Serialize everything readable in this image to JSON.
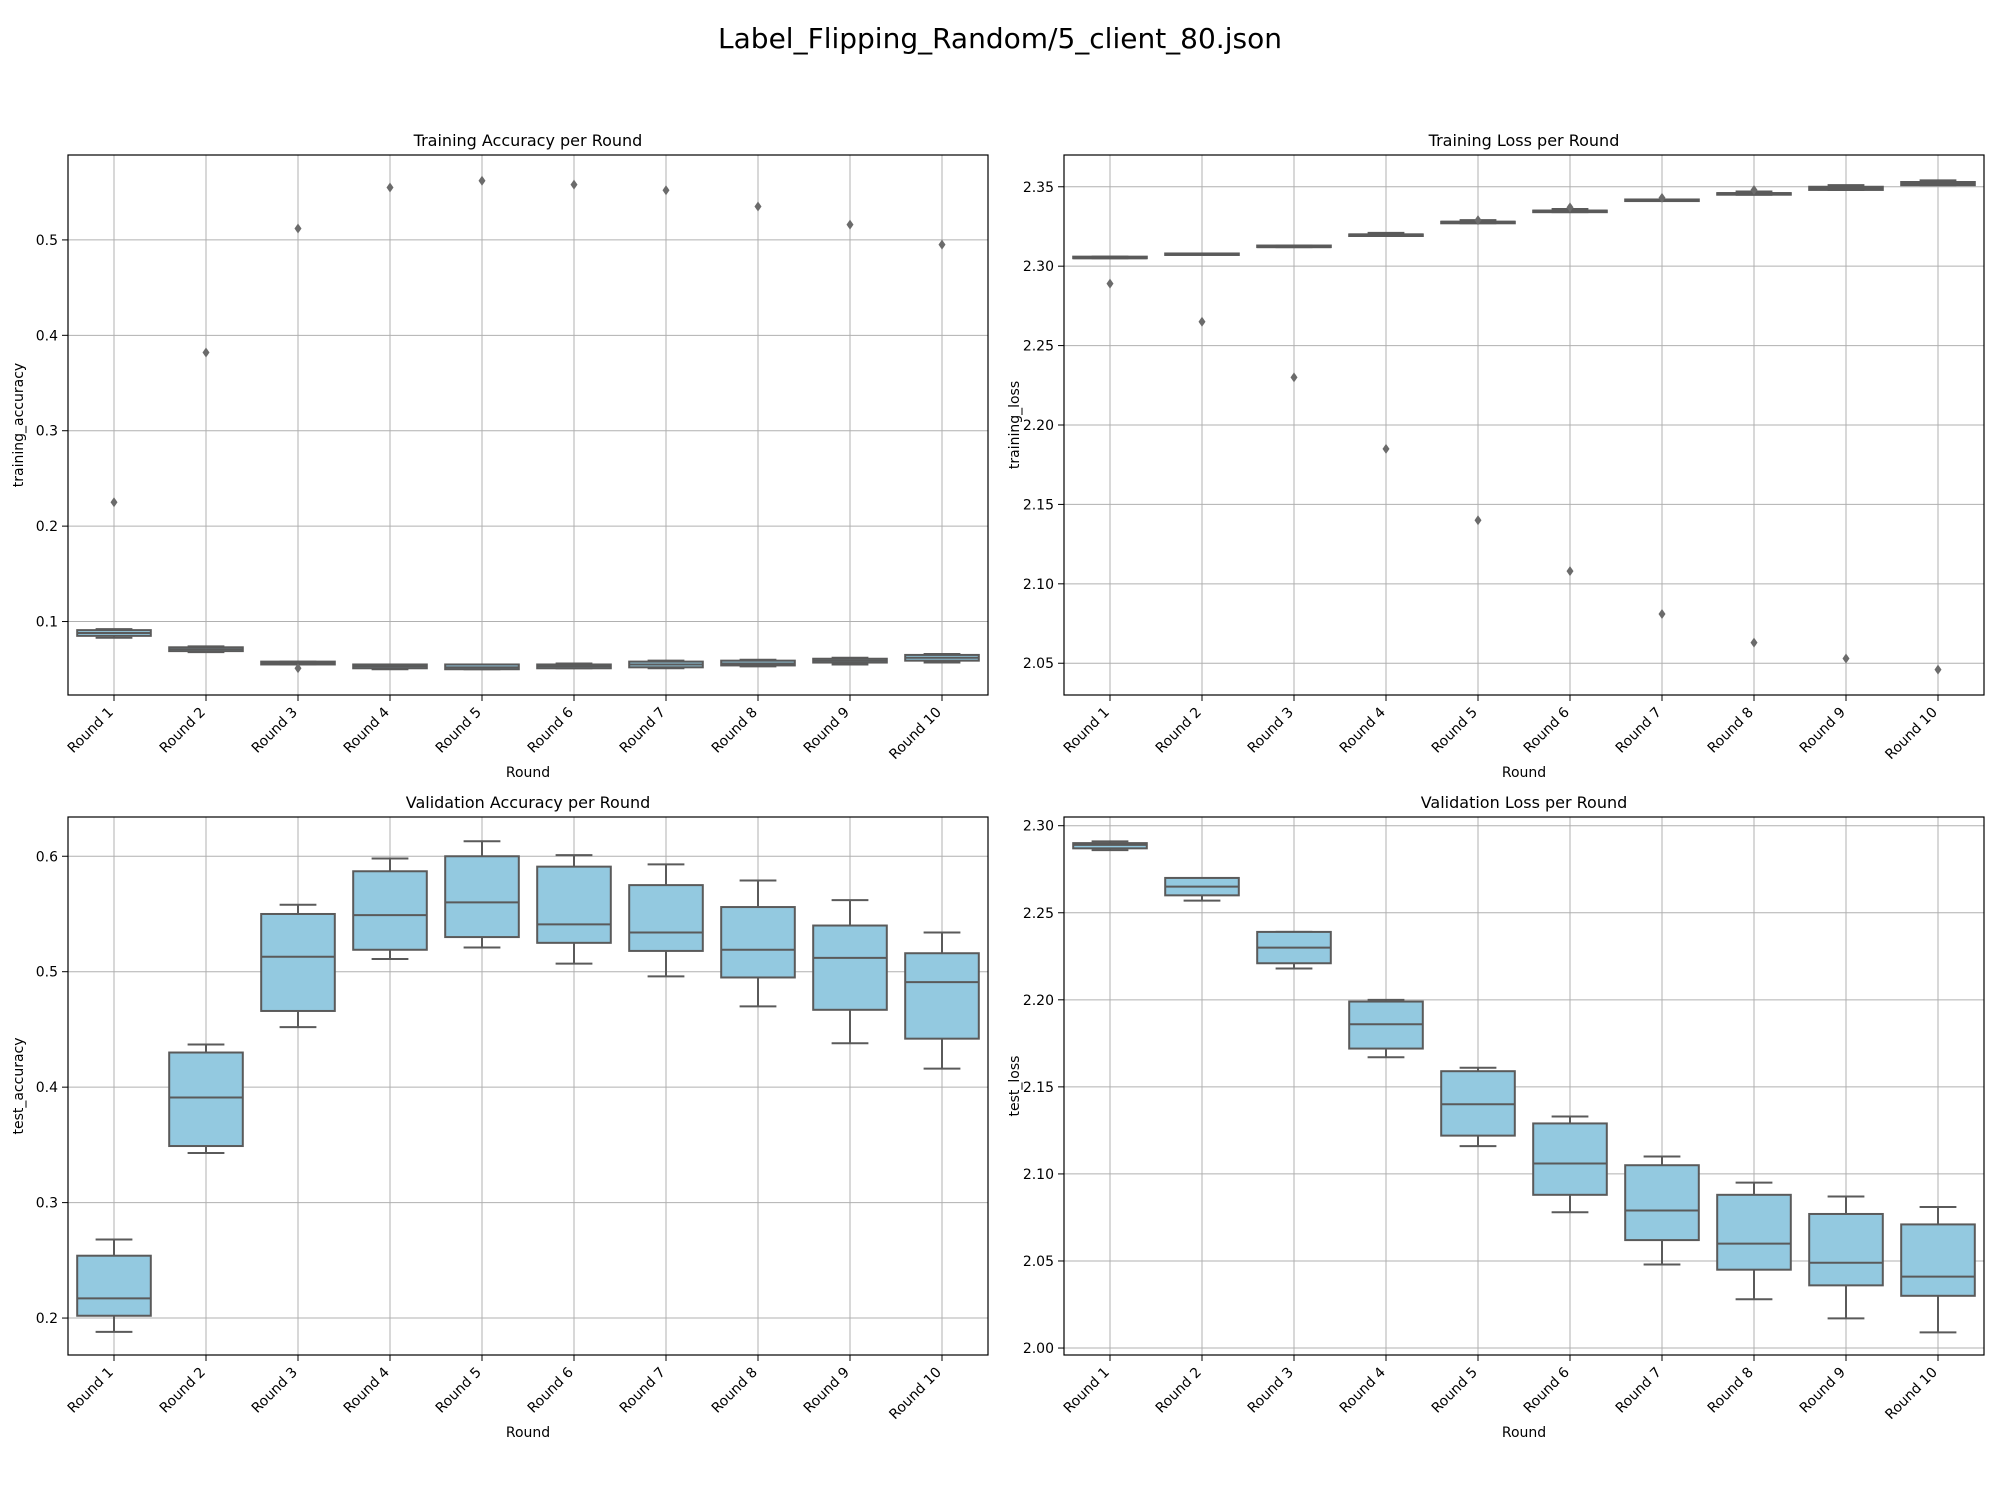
{
  "figure_title": "Label_Flipping_Random/5_client_80.json",
  "chart_data": [
    {
      "type": "box",
      "title": "Training Accuracy per Round",
      "xlabel": "Round",
      "ylabel": "training_accuracy",
      "categories": [
        "Round 1",
        "Round 2",
        "Round 3",
        "Round 4",
        "Round 5",
        "Round 6",
        "Round 7",
        "Round 8",
        "Round 9",
        "Round 10"
      ],
      "ylim": [
        0.023,
        0.589
      ],
      "yticks": [
        0.1,
        0.2,
        0.3,
        0.4,
        0.5
      ],
      "box_color": "#93c9e0",
      "grid": true,
      "boxes": [
        {
          "whislo": 0.083,
          "q1": 0.085,
          "med": 0.088,
          "q3": 0.091,
          "whishi": 0.092,
          "fliers": [
            0.225
          ]
        },
        {
          "whislo": 0.068,
          "q1": 0.069,
          "med": 0.071,
          "q3": 0.073,
          "whishi": 0.074,
          "fliers": [
            0.382
          ]
        },
        {
          "whislo": 0.055,
          "q1": 0.055,
          "med": 0.056,
          "q3": 0.058,
          "whishi": 0.058,
          "fliers": [
            0.512,
            0.051
          ]
        },
        {
          "whislo": 0.05,
          "q1": 0.051,
          "med": 0.053,
          "q3": 0.055,
          "whishi": 0.055,
          "fliers": [
            0.555
          ]
        },
        {
          "whislo": 0.05,
          "q1": 0.05,
          "med": 0.052,
          "q3": 0.055,
          "whishi": 0.055,
          "fliers": [
            0.562
          ]
        },
        {
          "whislo": 0.051,
          "q1": 0.051,
          "med": 0.053,
          "q3": 0.055,
          "whishi": 0.056,
          "fliers": [
            0.558
          ]
        },
        {
          "whislo": 0.051,
          "q1": 0.052,
          "med": 0.055,
          "q3": 0.058,
          "whishi": 0.059,
          "fliers": [
            0.552
          ]
        },
        {
          "whislo": 0.053,
          "q1": 0.054,
          "med": 0.056,
          "q3": 0.059,
          "whishi": 0.06,
          "fliers": [
            0.535
          ]
        },
        {
          "whislo": 0.055,
          "q1": 0.057,
          "med": 0.059,
          "q3": 0.061,
          "whishi": 0.062,
          "fliers": [
            0.516
          ]
        },
        {
          "whislo": 0.057,
          "q1": 0.059,
          "med": 0.062,
          "q3": 0.065,
          "whishi": 0.066,
          "fliers": [
            0.495
          ]
        }
      ]
    },
    {
      "type": "box",
      "title": "Training Loss per Round",
      "xlabel": "Round",
      "ylabel": "training_loss",
      "categories": [
        "Round 1",
        "Round 2",
        "Round 3",
        "Round 4",
        "Round 5",
        "Round 6",
        "Round 7",
        "Round 8",
        "Round 9",
        "Round 10"
      ],
      "ylim": [
        2.03,
        2.37
      ],
      "yticks": [
        2.05,
        2.1,
        2.15,
        2.2,
        2.25,
        2.3,
        2.35
      ],
      "box_color": "#93c9e0",
      "grid": true,
      "boxes": [
        {
          "whislo": 2.305,
          "q1": 2.305,
          "med": 2.305,
          "q3": 2.306,
          "whishi": 2.306,
          "fliers": [
            2.289
          ]
        },
        {
          "whislo": 2.308,
          "q1": 2.308,
          "med": 2.308,
          "q3": 2.308,
          "whishi": 2.308,
          "fliers": [
            2.265
          ]
        },
        {
          "whislo": 2.312,
          "q1": 2.312,
          "med": 2.312,
          "q3": 2.313,
          "whishi": 2.313,
          "fliers": [
            2.23
          ]
        },
        {
          "whislo": 2.319,
          "q1": 2.319,
          "med": 2.32,
          "q3": 2.32,
          "whishi": 2.321,
          "fliers": [
            2.185
          ]
        },
        {
          "whislo": 2.327,
          "q1": 2.327,
          "med": 2.328,
          "q3": 2.328,
          "whishi": 2.329,
          "fliers": [
            2.14,
            2.329
          ]
        },
        {
          "whislo": 2.334,
          "q1": 2.334,
          "med": 2.335,
          "q3": 2.335,
          "whishi": 2.336,
          "fliers": [
            2.108,
            2.337
          ]
        },
        {
          "whislo": 2.341,
          "q1": 2.341,
          "med": 2.341,
          "q3": 2.342,
          "whishi": 2.342,
          "fliers": [
            2.081,
            2.343
          ]
        },
        {
          "whislo": 2.345,
          "q1": 2.345,
          "med": 2.346,
          "q3": 2.346,
          "whishi": 2.347,
          "fliers": [
            2.063,
            2.348
          ]
        },
        {
          "whislo": 2.348,
          "q1": 2.348,
          "med": 2.349,
          "q3": 2.35,
          "whishi": 2.351,
          "fliers": [
            2.053
          ]
        },
        {
          "whislo": 2.351,
          "q1": 2.351,
          "med": 2.352,
          "q3": 2.353,
          "whishi": 2.354,
          "fliers": [
            2.046
          ]
        }
      ]
    },
    {
      "type": "box",
      "title": "Validation Accuracy per Round",
      "xlabel": "Round",
      "ylabel": "test_accuracy",
      "categories": [
        "Round 1",
        "Round 2",
        "Round 3",
        "Round 4",
        "Round 5",
        "Round 6",
        "Round 7",
        "Round 8",
        "Round 9",
        "Round 10"
      ],
      "ylim": [
        0.168,
        0.634
      ],
      "yticks": [
        0.2,
        0.3,
        0.4,
        0.5,
        0.6
      ],
      "box_color": "#93c9e0",
      "grid": true,
      "boxes": [
        {
          "whislo": 0.188,
          "q1": 0.202,
          "med": 0.217,
          "q3": 0.254,
          "whishi": 0.268,
          "fliers": []
        },
        {
          "whislo": 0.343,
          "q1": 0.349,
          "med": 0.391,
          "q3": 0.43,
          "whishi": 0.437,
          "fliers": []
        },
        {
          "whislo": 0.452,
          "q1": 0.466,
          "med": 0.513,
          "q3": 0.55,
          "whishi": 0.558,
          "fliers": []
        },
        {
          "whislo": 0.511,
          "q1": 0.519,
          "med": 0.549,
          "q3": 0.587,
          "whishi": 0.598,
          "fliers": []
        },
        {
          "whislo": 0.521,
          "q1": 0.53,
          "med": 0.56,
          "q3": 0.6,
          "whishi": 0.613,
          "fliers": []
        },
        {
          "whislo": 0.507,
          "q1": 0.525,
          "med": 0.541,
          "q3": 0.591,
          "whishi": 0.601,
          "fliers": []
        },
        {
          "whislo": 0.496,
          "q1": 0.518,
          "med": 0.534,
          "q3": 0.575,
          "whishi": 0.593,
          "fliers": []
        },
        {
          "whislo": 0.47,
          "q1": 0.495,
          "med": 0.519,
          "q3": 0.556,
          "whishi": 0.579,
          "fliers": []
        },
        {
          "whislo": 0.438,
          "q1": 0.467,
          "med": 0.512,
          "q3": 0.54,
          "whishi": 0.562,
          "fliers": []
        },
        {
          "whislo": 0.416,
          "q1": 0.442,
          "med": 0.491,
          "q3": 0.516,
          "whishi": 0.534,
          "fliers": []
        }
      ]
    },
    {
      "type": "box",
      "title": "Validation Loss per Round",
      "xlabel": "Round",
      "ylabel": "test_loss",
      "categories": [
        "Round 1",
        "Round 2",
        "Round 3",
        "Round 4",
        "Round 5",
        "Round 6",
        "Round 7",
        "Round 8",
        "Round 9",
        "Round 10"
      ],
      "ylim": [
        1.996,
        2.305
      ],
      "yticks": [
        2.0,
        2.05,
        2.1,
        2.15,
        2.2,
        2.25,
        2.3
      ],
      "box_color": "#93c9e0",
      "grid": true,
      "boxes": [
        {
          "whislo": 2.286,
          "q1": 2.287,
          "med": 2.289,
          "q3": 2.29,
          "whishi": 2.291,
          "fliers": []
        },
        {
          "whislo": 2.257,
          "q1": 2.26,
          "med": 2.265,
          "q3": 2.27,
          "whishi": 2.27,
          "fliers": []
        },
        {
          "whislo": 2.218,
          "q1": 2.221,
          "med": 2.23,
          "q3": 2.239,
          "whishi": 2.239,
          "fliers": []
        },
        {
          "whislo": 2.167,
          "q1": 2.172,
          "med": 2.186,
          "q3": 2.199,
          "whishi": 2.2,
          "fliers": []
        },
        {
          "whislo": 2.116,
          "q1": 2.122,
          "med": 2.14,
          "q3": 2.159,
          "whishi": 2.161,
          "fliers": []
        },
        {
          "whislo": 2.078,
          "q1": 2.088,
          "med": 2.106,
          "q3": 2.129,
          "whishi": 2.133,
          "fliers": []
        },
        {
          "whislo": 2.048,
          "q1": 2.062,
          "med": 2.079,
          "q3": 2.105,
          "whishi": 2.11,
          "fliers": []
        },
        {
          "whislo": 2.028,
          "q1": 2.045,
          "med": 2.06,
          "q3": 2.088,
          "whishi": 2.095,
          "fliers": []
        },
        {
          "whislo": 2.017,
          "q1": 2.036,
          "med": 2.049,
          "q3": 2.077,
          "whishi": 2.087,
          "fliers": []
        },
        {
          "whislo": 2.009,
          "q1": 2.03,
          "med": 2.041,
          "q3": 2.071,
          "whishi": 2.081,
          "fliers": []
        }
      ]
    }
  ]
}
